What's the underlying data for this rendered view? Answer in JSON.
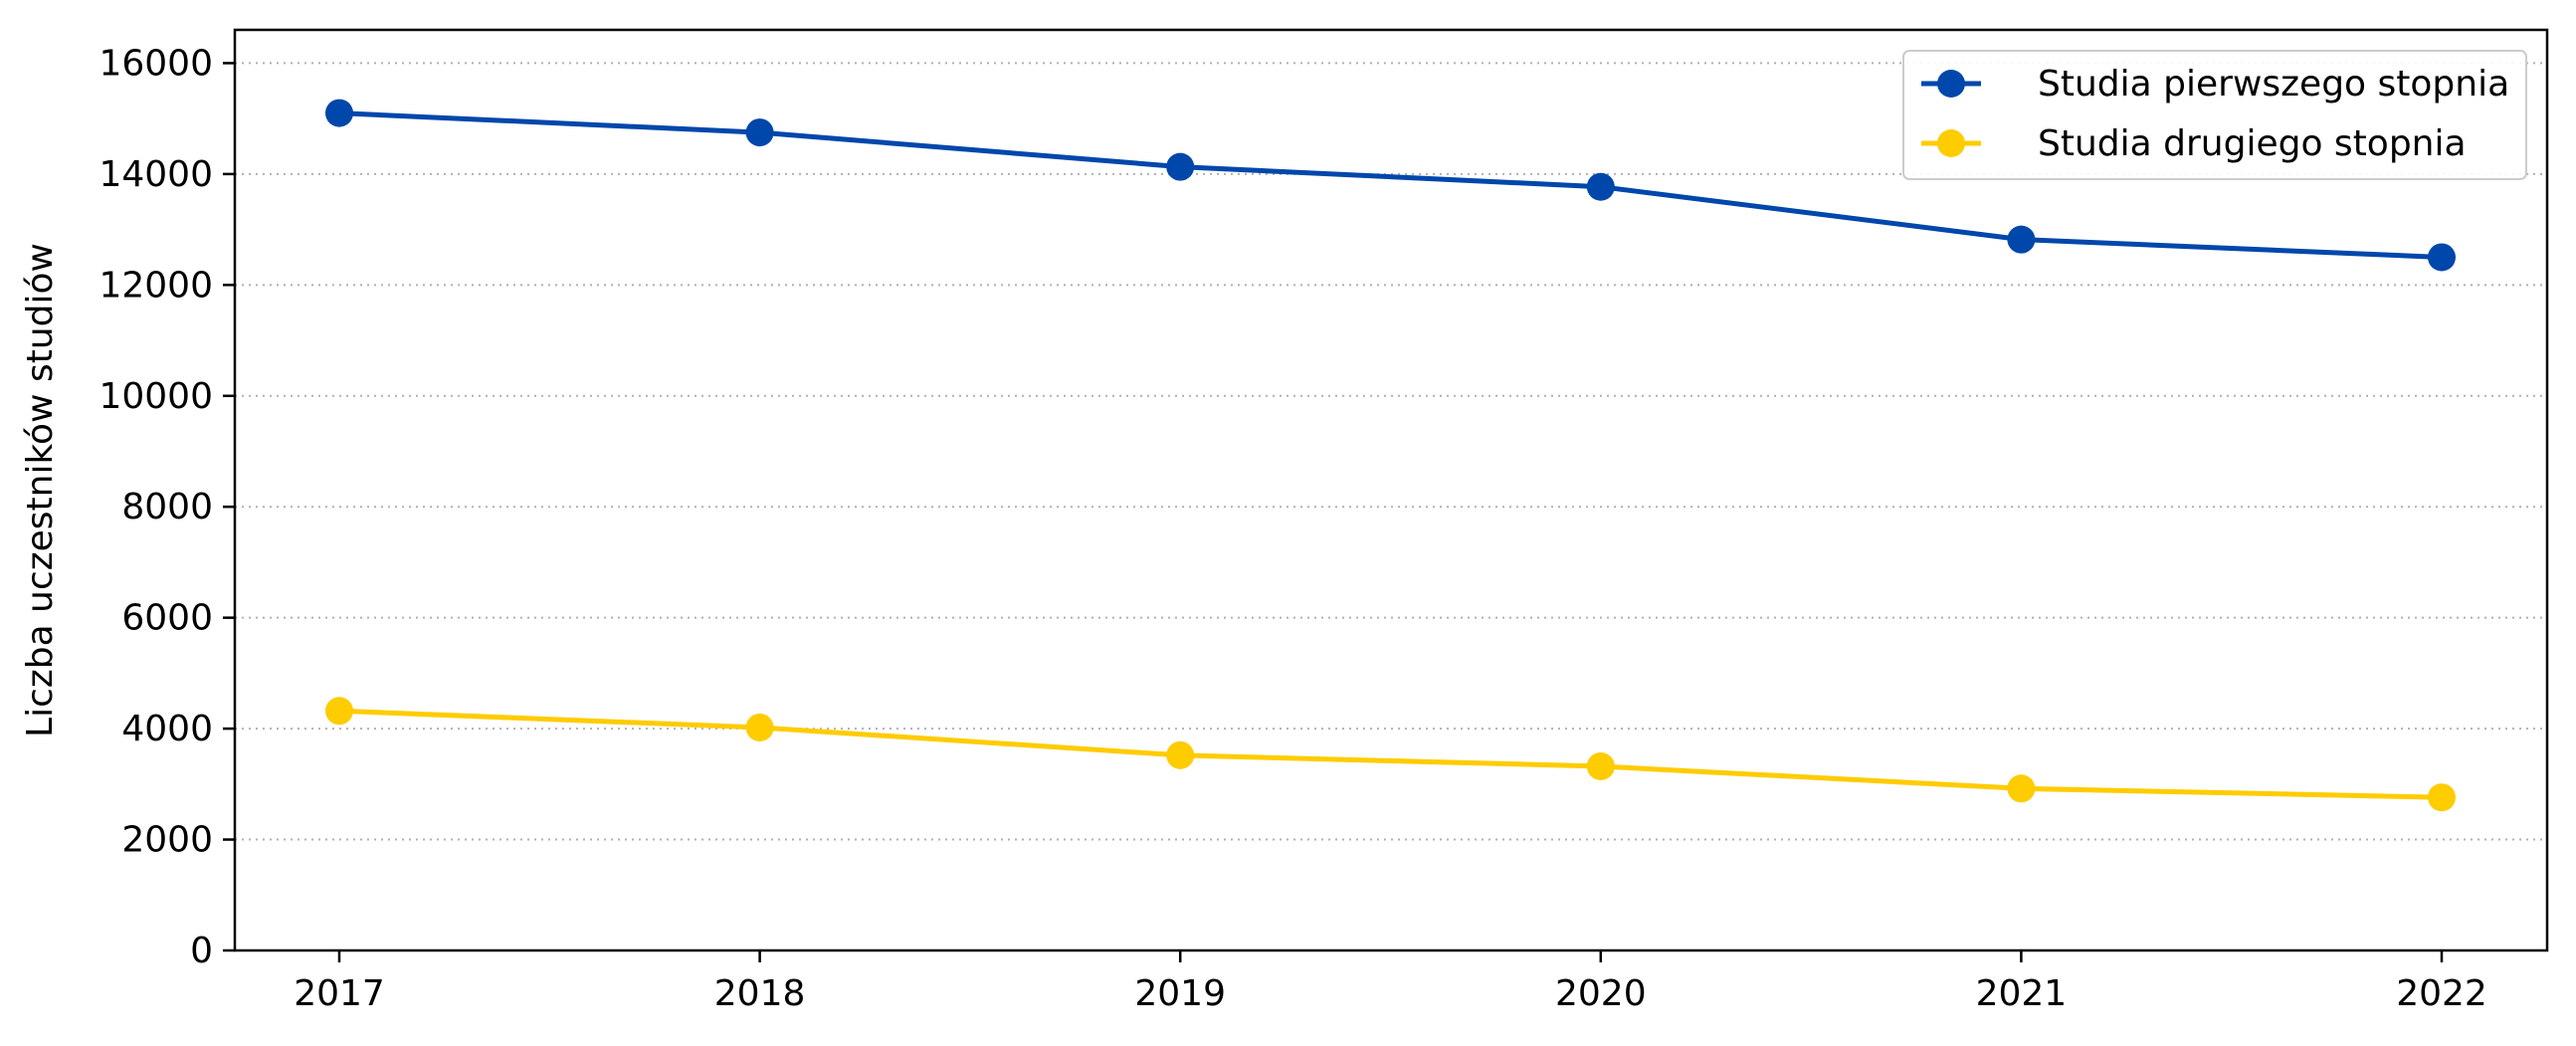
{
  "chart_data": {
    "type": "line",
    "title": "",
    "xlabel": "",
    "ylabel": "Liczba uczestników studiów",
    "x": [
      "2017",
      "2018",
      "2019",
      "2020",
      "2021",
      "2022"
    ],
    "series": [
      {
        "name": "Studia pierwszego stopnia",
        "color": "#0047ab",
        "values": [
          15100,
          14750,
          14130,
          13770,
          12820,
          12500
        ]
      },
      {
        "name": "Studia drugiego stopnia",
        "color": "#ffcc00",
        "values": [
          4320,
          4020,
          3520,
          3320,
          2920,
          2760
        ]
      }
    ],
    "ylim": [
      0,
      16600
    ],
    "yticks": [
      "0",
      "2000",
      "4000",
      "6000",
      "8000",
      "10000",
      "12000",
      "14000",
      "16000"
    ],
    "grid": "y-dotted",
    "legend_position": "top-right",
    "marker": "circle"
  }
}
